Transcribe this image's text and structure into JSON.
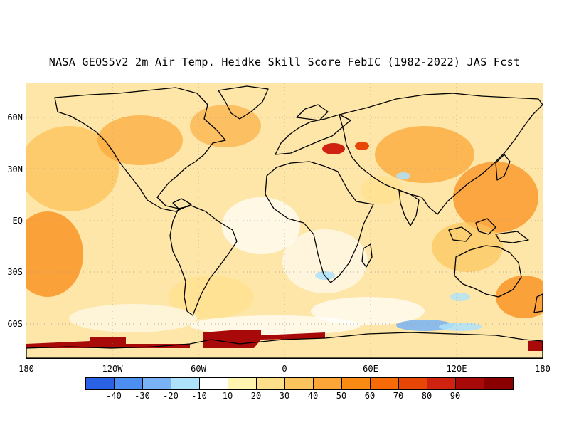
{
  "title": "NASA_GEOS5v2 2m Air Temp. Heidke Skill Score FebIC (1982-2022) JAS Fcst",
  "map": {
    "lat_labels": [
      "60N",
      "30N",
      "EQ",
      "30S",
      "60S"
    ],
    "lon_labels": [
      "180",
      "120W",
      "60W",
      "0",
      "60E",
      "120E",
      "180"
    ],
    "gridlines": true,
    "projection": "cylindrical-equidistant"
  },
  "colorbar": {
    "colors": [
      "#2a62e6",
      "#4d8ff0",
      "#79b3f5",
      "#aee2fb",
      "#ffffff",
      "#fff4b0",
      "#ffe08a",
      "#fcc45c",
      "#fba636",
      "#f98a14",
      "#f66a08",
      "#e84606",
      "#cf2210",
      "#a80a0a",
      "#8a0000"
    ],
    "labels": [
      "-40",
      "-30",
      "-20",
      "-10",
      "10",
      "20",
      "30",
      "40",
      "50",
      "60",
      "70",
      "80",
      "90"
    ]
  },
  "colors": {
    "background": "#ffffff",
    "outline": "#000000",
    "map_base": "#fde6a8"
  }
}
